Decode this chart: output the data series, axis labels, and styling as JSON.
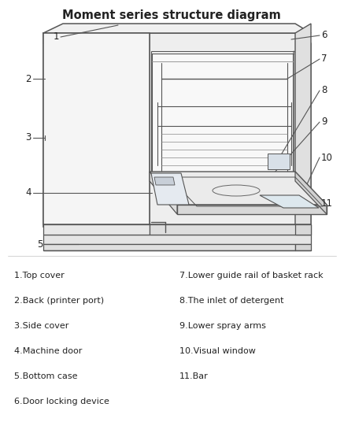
{
  "title": "Moment series structure diagram",
  "title_fontsize": 10.5,
  "title_fontweight": "bold",
  "bg_color": "#ffffff",
  "line_color": "#555555",
  "text_color": "#222222",
  "label_fontsize": 8.0,
  "parts_left": [
    [
      "1",
      "Top cover"
    ],
    [
      "2",
      "Back (printer port)"
    ],
    [
      "3",
      "Side cover"
    ],
    [
      "4",
      "Machine door"
    ],
    [
      "5",
      "Bottom case"
    ],
    [
      "6",
      "Door locking device"
    ]
  ],
  "parts_right": [
    [
      "7",
      "Lower guide rail of basket rack"
    ],
    [
      "8",
      "The inlet of detergent"
    ],
    [
      "9",
      "Lower spray arms"
    ],
    [
      "10",
      "Visual window"
    ],
    [
      "11",
      "Bar"
    ]
  ],
  "diagram_bounds": [
    0.0,
    0.44,
    1.0,
    1.0
  ],
  "legend_bounds": [
    0.0,
    0.0,
    1.0,
    0.44
  ]
}
